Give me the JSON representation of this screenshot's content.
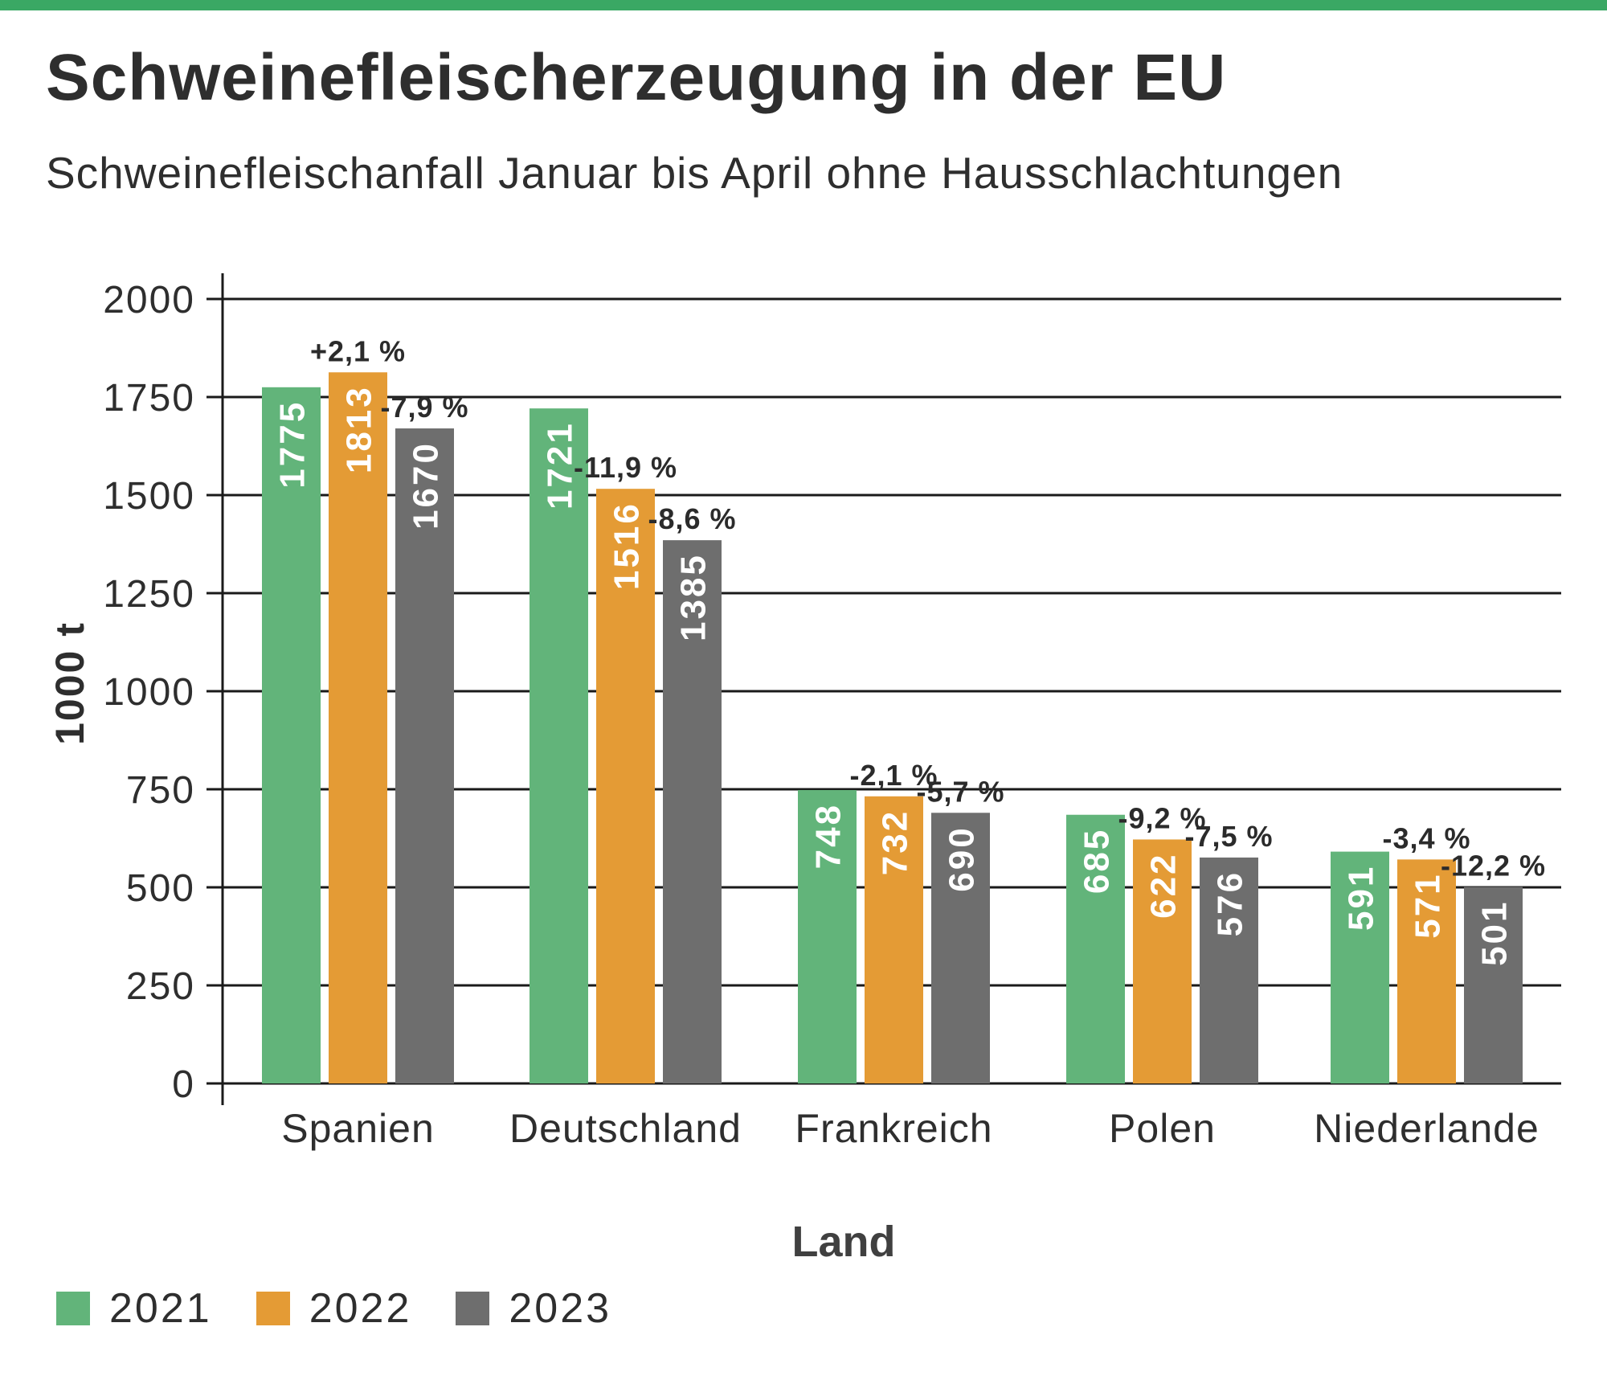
{
  "header": {
    "title": "Schweinefleischerzeugung in der EU",
    "subtitle": "Schweinefleischanfall Januar bis April ohne Hausschlachtungen"
  },
  "colors": {
    "accent_bar": "#3aa864",
    "series_2021": "#62b47a",
    "series_2022": "#e49b35",
    "series_2023": "#6e6e6e",
    "text": "#2e2e2e"
  },
  "chart_data": {
    "type": "bar",
    "title": "Schweinefleischerzeugung in der EU",
    "subtitle": "Schweinefleischanfall Januar bis April ohne Hausschlachtungen",
    "xlabel": "Land",
    "ylabel": "1000 t",
    "ylim": [
      0,
      2000
    ],
    "yticks": [
      0,
      250,
      500,
      750,
      1000,
      1250,
      1500,
      1750,
      2000
    ],
    "grid": true,
    "legend_position": "bottom-left",
    "categories": [
      "Spanien",
      "Deutschland",
      "Frankreich",
      "Polen",
      "Niederlande"
    ],
    "series": [
      {
        "name": "2021",
        "color": "#62b47a",
        "values": [
          1775,
          1721,
          748,
          685,
          591
        ],
        "changes": [
          "",
          "",
          "",
          "",
          ""
        ]
      },
      {
        "name": "2022",
        "color": "#e49b35",
        "values": [
          1813,
          1516,
          732,
          622,
          571
        ],
        "changes": [
          "+2,1 %",
          "-11,9 %",
          "-2,1 %",
          "-9,2 %",
          "-3,4 %"
        ]
      },
      {
        "name": "2023",
        "color": "#6e6e6e",
        "values": [
          1670,
          1385,
          690,
          576,
          501
        ],
        "changes": [
          "-7,9 %",
          "-8,6 %",
          "-5,7 %",
          "-7,5 %",
          "-12,2 %"
        ]
      }
    ]
  }
}
